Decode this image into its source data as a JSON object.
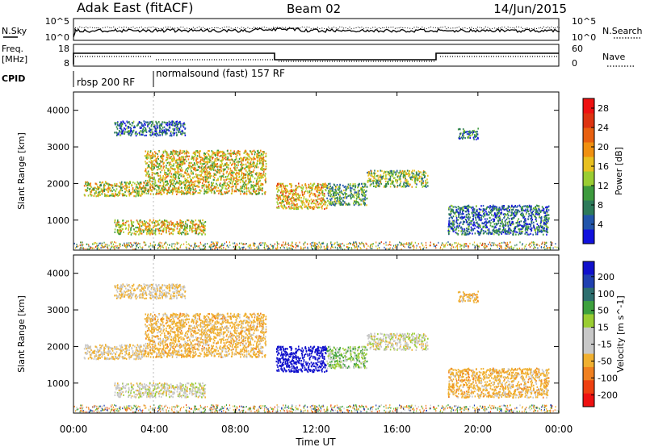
{
  "header": {
    "station": "Adak East (fitACF)",
    "beam": "Beam 02",
    "date": "14/Jun/2015"
  },
  "nsky_panel": {
    "left_label": "N.Sky",
    "left_ticks": [
      "10^5",
      "10^0"
    ],
    "right_label": "N.Search",
    "right_ticks": [
      "10^5",
      "10^0"
    ]
  },
  "freq_panel": {
    "left_label_line1": "Freq.",
    "left_label_line2": "[MHz]",
    "left_ticks": [
      18,
      8
    ],
    "right_label": "Nave",
    "right_ticks": [
      60,
      0
    ],
    "cpid_label": "CPID"
  },
  "cpid_segments": [
    {
      "label": "rbsp 200 RF",
      "start": "00:00",
      "end": "04:00"
    },
    {
      "label": "normalsound (fast) 157 RF",
      "start": "04:00",
      "end": "24:00"
    }
  ],
  "time_axis": {
    "label": "Time UT",
    "ticks": [
      "00:00",
      "04:00",
      "08:00",
      "12:00",
      "16:00",
      "20:00",
      "00:00"
    ]
  },
  "range_axis": {
    "label": "Slant Range [km]",
    "ticks": [
      1000,
      2000,
      3000,
      4000
    ]
  },
  "power_colorbar": {
    "label": "Power [dB]",
    "ticks": [
      "4",
      "8",
      "12",
      "16",
      "20",
      "24",
      "28"
    ],
    "colors": [
      "#1111dd",
      "#2255aa",
      "#2d7a5a",
      "#3d9a3d",
      "#9acd32",
      "#e8c020",
      "#f09010",
      "#e86010",
      "#dd3311",
      "#ee1111"
    ]
  },
  "velocity_colorbar": {
    "label": "Velocity [m s^-1]",
    "ticks": [
      "200",
      "100",
      "50",
      "15",
      "-15",
      "-50",
      "-100",
      "-200"
    ],
    "colors": [
      "#1010cc",
      "#2040b0",
      "#2d6e6e",
      "#3da03d",
      "#9acd32",
      "#c8c8c8",
      "#c8c8c8",
      "#f0b030",
      "#f08020",
      "#ee4010",
      "#ee1111"
    ]
  },
  "chart_data": {
    "type": "heatmap",
    "title": "Adak East (fitACF) Beam 02 14/Jun/2015",
    "xlabel": "Time UT",
    "ylabel": "Slant Range [km]",
    "xlim": [
      "00:00",
      "24:00"
    ],
    "ylim": [
      180,
      4500
    ],
    "series": [
      {
        "name": "Power [dB]",
        "colorbar_range": [
          0,
          30
        ]
      },
      {
        "name": "Velocity [m s^-1]",
        "colorbar_range": [
          -200,
          200
        ]
      }
    ],
    "scatter_regions": [
      {
        "time_start": "00:30",
        "time_end": "03:30",
        "range_start": 1650,
        "range_end": 2050,
        "power_db": 15,
        "velocity": -15
      },
      {
        "time_start": "03:30",
        "time_end": "09:30",
        "range_start": 1700,
        "range_end": 2900,
        "power_db": 16,
        "velocity": -30
      },
      {
        "time_start": "02:00",
        "time_end": "06:30",
        "range_start": 600,
        "range_end": 1000,
        "power_db": 16,
        "velocity": 0
      },
      {
        "time_start": "10:00",
        "time_end": "12:30",
        "range_start": 1300,
        "range_end": 2000,
        "power_db": 18,
        "velocity": 200
      },
      {
        "time_start": "12:30",
        "time_end": "14:30",
        "range_start": 1400,
        "range_end": 2000,
        "power_db": 10,
        "velocity": 20
      },
      {
        "time_start": "14:30",
        "time_end": "17:30",
        "range_start": 1900,
        "range_end": 2350,
        "power_db": 12,
        "velocity": 0
      },
      {
        "time_start": "18:30",
        "time_end": "23:30",
        "range_start": 600,
        "range_end": 1400,
        "power_db": 6,
        "velocity": -30
      },
      {
        "time_start": "19:00",
        "time_end": "20:00",
        "range_start": 3200,
        "range_end": 3500,
        "power_db": 8,
        "velocity": -30
      },
      {
        "time_start": "02:00",
        "time_end": "05:30",
        "range_start": 3300,
        "range_end": 3700,
        "power_db": 6,
        "velocity": -15
      }
    ]
  }
}
